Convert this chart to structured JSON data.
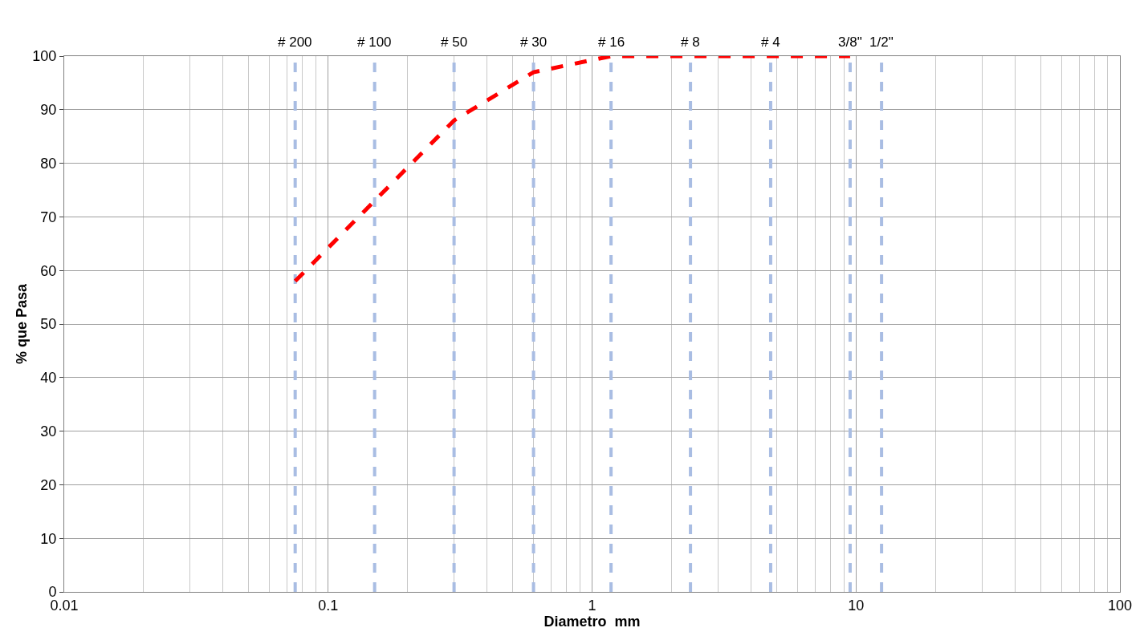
{
  "chart_data": {
    "type": "line",
    "xlabel": "Diametro  mm",
    "ylabel": "% que Pasa",
    "log": "x",
    "x": [
      0.075,
      0.15,
      0.3,
      0.6,
      1.18,
      2.36,
      4.75,
      9.5
    ],
    "series": [
      {
        "color": "#ff0000",
        "values": [
          58,
          73,
          88,
          97,
          100,
          100,
          100,
          100
        ],
        "line_style": "dashed"
      }
    ],
    "xlim": [
      0.01,
      100
    ],
    "xticks": [
      0.01,
      0.1,
      1,
      10,
      100
    ],
    "ylim": [
      0,
      100
    ],
    "yticks": [
      0,
      10,
      20,
      30,
      40,
      50,
      60,
      70,
      80,
      90,
      100
    ],
    "grid": true,
    "marker": "none",
    "ref_lines": [
      {
        "axis": "x",
        "value": 0.075,
        "color": "#a9bde3",
        "line_style": "dashed"
      },
      {
        "axis": "x",
        "value": 0.15,
        "color": "#a9bde3",
        "line_style": "dashed"
      },
      {
        "axis": "x",
        "value": 0.3,
        "color": "#a9bde3",
        "line_style": "dashed"
      },
      {
        "axis": "x",
        "value": 0.6,
        "color": "#a9bde3",
        "line_style": "dashed"
      },
      {
        "axis": "x",
        "value": 1.18,
        "color": "#a9bde3",
        "line_style": "dashed"
      },
      {
        "axis": "x",
        "value": 2.36,
        "color": "#a9bde3",
        "line_style": "dashed"
      },
      {
        "axis": "x",
        "value": 4.75,
        "color": "#a9bde3",
        "line_style": "dashed"
      },
      {
        "axis": "x",
        "value": 9.5,
        "color": "#a9bde3",
        "line_style": "dashed"
      },
      {
        "axis": "x",
        "value": 12.5,
        "color": "#a9bde3",
        "line_style": "dashed"
      }
    ],
    "annotations": [
      {
        "text": "# 200",
        "x": 0.075,
        "y": 100
      },
      {
        "text": "# 100",
        "x": 0.15,
        "y": 100
      },
      {
        "text": "# 50",
        "x": 0.3,
        "y": 100
      },
      {
        "text": "# 30",
        "x": 0.6,
        "y": 100
      },
      {
        "text": "# 16",
        "x": 1.18,
        "y": 100
      },
      {
        "text": "# 8",
        "x": 2.36,
        "y": 100
      },
      {
        "text": "# 4",
        "x": 4.75,
        "y": 100
      },
      {
        "text": "3/8\"",
        "x": 9.5,
        "y": 100
      },
      {
        "text": "1/2\"",
        "x": 12.5,
        "y": 100
      }
    ]
  }
}
